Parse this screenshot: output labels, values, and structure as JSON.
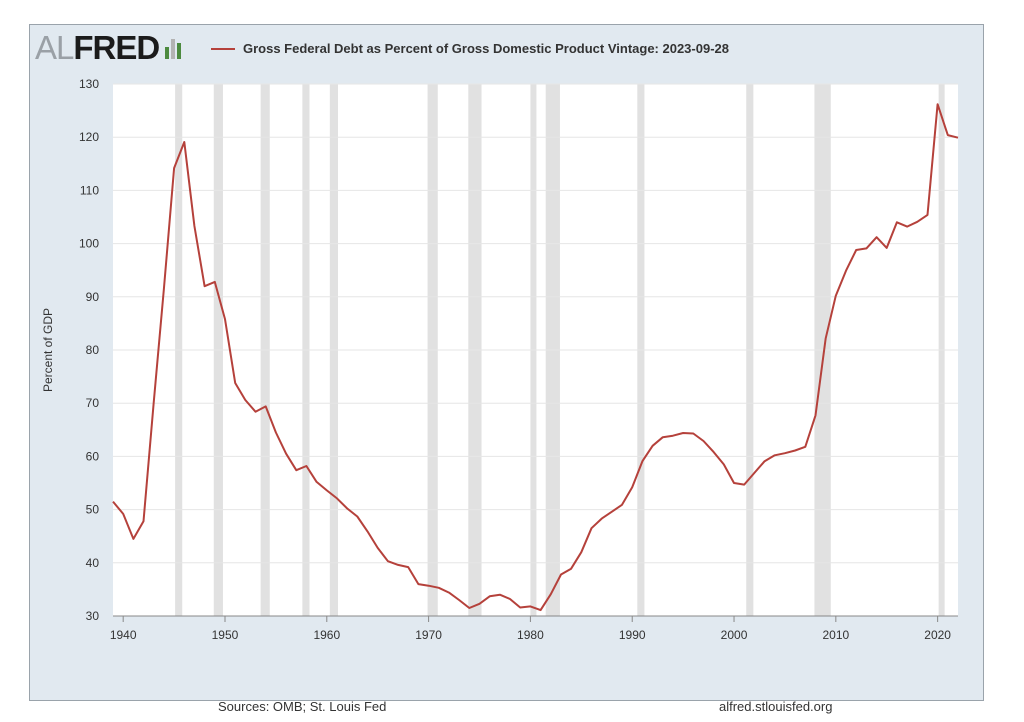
{
  "logo": {
    "part1": "AL",
    "part2": "FRED",
    "bar_colors": [
      "#4c8a3f",
      "#b3b3b3",
      "#4c8a3f"
    ]
  },
  "footer": {
    "sources": "Sources: OMB; St. Louis Fed",
    "site": "alfred.stlouisfed.org"
  },
  "colors": {
    "background": "#e1e9f0",
    "plot_area": "#ffffff",
    "recession": "#e1e1e1",
    "line": "#b5413b",
    "grid": "#e6e6e6"
  },
  "chart_data": {
    "type": "line",
    "title": "",
    "xlabel": "",
    "ylabel": "Percent of GDP",
    "xlim": [
      1939,
      2022
    ],
    "ylim": [
      30,
      130
    ],
    "grid": true,
    "legend": "top",
    "yticks": [
      30,
      40,
      50,
      60,
      70,
      80,
      90,
      100,
      110,
      120,
      130
    ],
    "xticks": [
      1940,
      1950,
      1960,
      1970,
      1980,
      1990,
      2000,
      2010,
      2020
    ],
    "recessions": [
      [
        1945.1,
        1945.8
      ],
      [
        1948.9,
        1949.8
      ],
      [
        1953.5,
        1954.4
      ],
      [
        1957.6,
        1958.3
      ],
      [
        1960.3,
        1961.1
      ],
      [
        1969.9,
        1970.9
      ],
      [
        1973.9,
        1975.2
      ],
      [
        1980.0,
        1980.5
      ],
      [
        1981.5,
        1982.9
      ],
      [
        1990.5,
        1991.2
      ],
      [
        2001.2,
        2001.9
      ],
      [
        2007.9,
        2009.5
      ],
      [
        2020.1,
        2020.4
      ]
    ],
    "series": [
      {
        "name": "Gross Federal Debt as Percent of Gross Domestic Product Vintage: 2023-09-28",
        "color": "#b5413b",
        "x": [
          1939,
          1940,
          1941,
          1942,
          1943,
          1944,
          1945,
          1946,
          1947,
          1948,
          1949,
          1950,
          1951,
          1952,
          1953,
          1954,
          1955,
          1956,
          1957,
          1958,
          1959,
          1960,
          1961,
          1962,
          1963,
          1964,
          1965,
          1966,
          1967,
          1968,
          1969,
          1970,
          1971,
          1972,
          1973,
          1974,
          1975,
          1976,
          1977,
          1978,
          1979,
          1980,
          1981,
          1982,
          1983,
          1984,
          1985,
          1986,
          1987,
          1988,
          1989,
          1990,
          1991,
          1992,
          1993,
          1994,
          1995,
          1996,
          1997,
          1998,
          1999,
          2000,
          2001,
          2002,
          2003,
          2004,
          2005,
          2006,
          2007,
          2008,
          2009,
          2010,
          2011,
          2012,
          2013,
          2014,
          2015,
          2016,
          2017,
          2018,
          2019,
          2020,
          2021,
          2022
        ],
        "y": [
          51.5,
          49.2,
          44.5,
          47.8,
          70.1,
          91.5,
          114.2,
          119.1,
          103.3,
          92.0,
          92.8,
          85.8,
          73.8,
          70.6,
          68.4,
          69.4,
          64.5,
          60.5,
          57.4,
          58.2,
          55.2,
          53.6,
          52.1,
          50.2,
          48.7,
          45.9,
          42.8,
          40.3,
          39.6,
          39.2,
          36.0,
          35.7,
          35.3,
          34.4,
          33.0,
          31.5,
          32.3,
          33.7,
          34.0,
          33.2,
          31.6,
          31.8,
          31.1,
          34.1,
          37.8,
          38.9,
          42.0,
          46.5,
          48.3,
          49.6,
          50.9,
          54.2,
          59.1,
          62.0,
          63.6,
          63.9,
          64.4,
          64.3,
          62.9,
          60.8,
          58.5,
          55.0,
          54.7,
          56.9,
          59.1,
          60.2,
          60.6,
          61.1,
          61.8,
          67.7,
          82.2,
          90.2,
          94.9,
          98.8,
          99.1,
          101.2,
          99.2,
          104.0,
          103.2,
          104.1,
          105.4,
          126.2,
          120.4,
          119.9
        ]
      }
    ]
  }
}
